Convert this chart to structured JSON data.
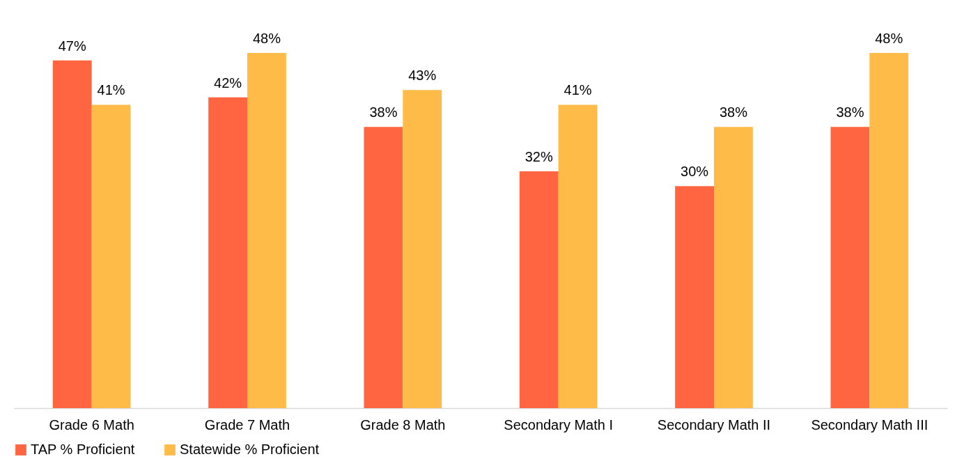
{
  "chart_data": {
    "type": "bar",
    "categories": [
      "Grade 6 Math",
      "Grade 7 Math",
      "Grade 8 Math",
      "Secondary Math I",
      "Secondary Math II",
      "Secondary Math III"
    ],
    "series": [
      {
        "name": "TAP % Proficient",
        "color": "#ff6540",
        "values": [
          47,
          42,
          38,
          32,
          30,
          38
        ],
        "value_labels": [
          "47%",
          "42%",
          "38%",
          "32%",
          "30%",
          "38%"
        ]
      },
      {
        "name": "Statewide % Proficient",
        "color": "#ffbb47",
        "values": [
          41,
          48,
          43,
          41,
          38,
          48
        ],
        "value_labels": [
          "41%",
          "48%",
          "43%",
          "41%",
          "38%",
          "48%"
        ]
      }
    ],
    "legend": "bottom",
    "grid": false
  }
}
